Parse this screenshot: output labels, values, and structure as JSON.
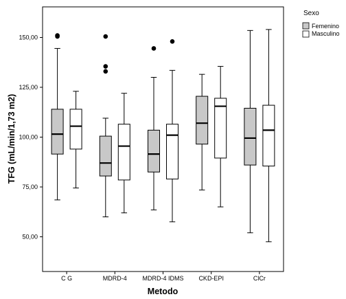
{
  "chart_data": {
    "type": "boxplot",
    "xlabel": "Metodo",
    "ylabel": "TFG (mL/min/1,73 m2)",
    "ylim": [
      38,
      160
    ],
    "yticks": [
      50,
      75,
      100,
      125,
      150
    ],
    "ytick_labels": [
      "50,00",
      "75,00",
      "100,00",
      "125,00",
      "150,00"
    ],
    "categories": [
      "C G",
      "MDRD-4",
      "MDRD-4 IDMS",
      "CKD-EPI",
      "ClCr"
    ],
    "legend": {
      "title": "Sexo",
      "position": "top-right",
      "entries": [
        "Femenino",
        "Masculino"
      ]
    },
    "series": [
      {
        "name": "Femenino",
        "color": "#c8c8c8",
        "boxes": [
          {
            "whisker_low": 68.5,
            "q1": 91.5,
            "median": 101.5,
            "q3": 114,
            "whisker_high": 144.5,
            "outliers": [
              150.5,
              151
            ]
          },
          {
            "whisker_low": 60,
            "q1": 80.5,
            "median": 87,
            "q3": 100.5,
            "whisker_high": 109.5,
            "outliers": [
              133,
              135.5,
              150.5
            ]
          },
          {
            "whisker_low": 63.5,
            "q1": 82.5,
            "median": 91.5,
            "q3": 103.5,
            "whisker_high": 130,
            "outliers": [
              144.5
            ]
          },
          {
            "whisker_low": 73.5,
            "q1": 96.5,
            "median": 107,
            "q3": 120.5,
            "whisker_high": 131.5,
            "outliers": []
          },
          {
            "whisker_low": 52,
            "q1": 86,
            "median": 99.5,
            "q3": 114.5,
            "whisker_high": 153.5,
            "outliers": []
          }
        ]
      },
      {
        "name": "Masculino",
        "color": "#ffffff",
        "boxes": [
          {
            "whisker_low": 74.5,
            "q1": 94,
            "median": 105.5,
            "q3": 114,
            "whisker_high": 123,
            "outliers": []
          },
          {
            "whisker_low": 62,
            "q1": 78.5,
            "median": 95.5,
            "q3": 106.5,
            "whisker_high": 122,
            "outliers": []
          },
          {
            "whisker_low": 57.5,
            "q1": 79,
            "median": 101,
            "q3": 106.5,
            "whisker_high": 133.5,
            "outliers": [
              148
            ]
          },
          {
            "whisker_low": 65,
            "q1": 89.5,
            "median": 115.5,
            "q3": 119.5,
            "whisker_high": 135.5,
            "outliers": []
          },
          {
            "whisker_low": 47.5,
            "q1": 85.5,
            "median": 103.5,
            "q3": 116,
            "whisker_high": 154,
            "outliers": []
          }
        ]
      }
    ]
  }
}
